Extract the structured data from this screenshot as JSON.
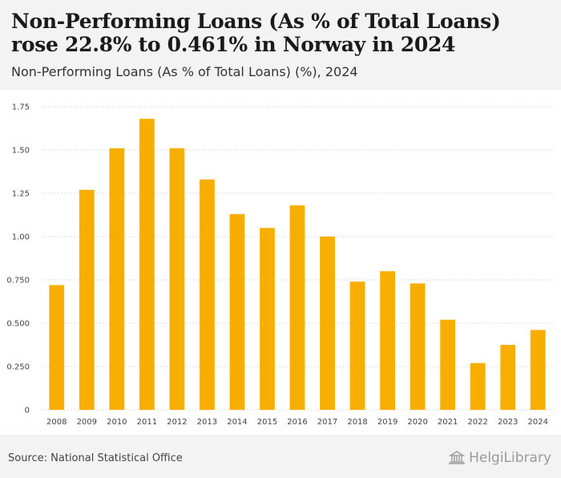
{
  "title": "Non-Performing Loans (As % of Total Loans) rose 22.8% to 0.461% in Norway in 2024",
  "subtitle": "Non-Performing Loans (As % of Total Loans) (%), 2024",
  "source": "Source: National Statistical Office",
  "logo_text": "HelgiLibrary",
  "colors": {
    "bar": "#F8AE00",
    "grid": "#dcdcdc",
    "background": "#ffffff"
  },
  "chart_data": {
    "type": "bar",
    "title": "Non-Performing Loans (As % of Total Loans) rose 22.8% to 0.461% in Norway in 2024",
    "xlabel": "",
    "ylabel": "",
    "categories": [
      "2008",
      "2009",
      "2010",
      "2011",
      "2012",
      "2013",
      "2014",
      "2015",
      "2016",
      "2017",
      "2018",
      "2019",
      "2020",
      "2021",
      "2022",
      "2023",
      "2024"
    ],
    "values": [
      0.72,
      1.27,
      1.51,
      1.68,
      1.51,
      1.33,
      1.13,
      1.05,
      1.18,
      1.0,
      0.74,
      0.8,
      0.73,
      0.52,
      0.27,
      0.375,
      0.461
    ],
    "ylim": [
      0,
      1.75
    ],
    "yticks": [
      0,
      0.25,
      0.5,
      0.75,
      1.0,
      1.25,
      1.5,
      1.75
    ],
    "ytick_labels": [
      "0",
      "0.250",
      "0.500",
      "0.750",
      "1.00",
      "1.25",
      "1.50",
      "1.75"
    ],
    "grid": true
  }
}
